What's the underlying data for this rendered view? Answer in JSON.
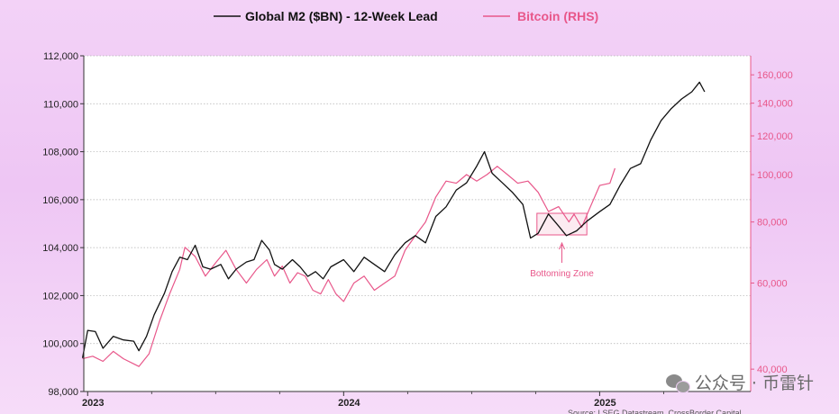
{
  "chart_data": {
    "type": "line",
    "legend": {
      "placement": "top",
      "items": [
        {
          "label": "Global M2 ($BN) - 12-Week Lead",
          "color": "#111111"
        },
        {
          "label": "Bitcoin (RHS)",
          "color": "#e8578a"
        }
      ]
    },
    "x_ticks": [
      "2023",
      "2024",
      "2025"
    ],
    "y_left": {
      "range": [
        98000,
        112000
      ],
      "ticks": [
        "98,000",
        "100,000",
        "102,000",
        "104,000",
        "106,000",
        "108,000",
        "110,000",
        "112,000"
      ]
    },
    "y_right": {
      "scale": "log",
      "range": [
        36000,
        175000
      ],
      "ticks": [
        "40,000",
        "60,000",
        "80,000",
        "100,000",
        "120,000",
        "140,000",
        "160,000"
      ],
      "color": "#e8578a"
    },
    "annotation": {
      "label": "Bottoming Zone",
      "color": "#e8578a"
    },
    "grid": true,
    "series": [
      {
        "name": "Global M2 ($BN) - 12-Week Lead",
        "axis": "left",
        "color": "#111111",
        "points": [
          [
            2022.98,
            99400
          ],
          [
            2023.0,
            100550
          ],
          [
            2023.03,
            100500
          ],
          [
            2023.06,
            99800
          ],
          [
            2023.1,
            100300
          ],
          [
            2023.14,
            100150
          ],
          [
            2023.18,
            100100
          ],
          [
            2023.2,
            99700
          ],
          [
            2023.23,
            100300
          ],
          [
            2023.26,
            101200
          ],
          [
            2023.3,
            102100
          ],
          [
            2023.33,
            103000
          ],
          [
            2023.36,
            103600
          ],
          [
            2023.39,
            103500
          ],
          [
            2023.42,
            104100
          ],
          [
            2023.45,
            103200
          ],
          [
            2023.48,
            103100
          ],
          [
            2023.52,
            103300
          ],
          [
            2023.55,
            102700
          ],
          [
            2023.58,
            103100
          ],
          [
            2023.62,
            103400
          ],
          [
            2023.65,
            103500
          ],
          [
            2023.68,
            104300
          ],
          [
            2023.71,
            103900
          ],
          [
            2023.73,
            103300
          ],
          [
            2023.76,
            103100
          ],
          [
            2023.8,
            103500
          ],
          [
            2023.83,
            103200
          ],
          [
            2023.86,
            102800
          ],
          [
            2023.89,
            103000
          ],
          [
            2023.92,
            102700
          ],
          [
            2023.95,
            103200
          ],
          [
            2024.0,
            103500
          ],
          [
            2024.04,
            103000
          ],
          [
            2024.08,
            103600
          ],
          [
            2024.12,
            103300
          ],
          [
            2024.16,
            103000
          ],
          [
            2024.2,
            103700
          ],
          [
            2024.24,
            104200
          ],
          [
            2024.28,
            104500
          ],
          [
            2024.32,
            104200
          ],
          [
            2024.36,
            105300
          ],
          [
            2024.4,
            105700
          ],
          [
            2024.44,
            106400
          ],
          [
            2024.48,
            106700
          ],
          [
            2024.52,
            107400
          ],
          [
            2024.55,
            108000
          ],
          [
            2024.58,
            107100
          ],
          [
            2024.62,
            106700
          ],
          [
            2024.66,
            106300
          ],
          [
            2024.7,
            105800
          ],
          [
            2024.73,
            104400
          ],
          [
            2024.76,
            104600
          ],
          [
            2024.8,
            105400
          ],
          [
            2024.84,
            104900
          ],
          [
            2024.87,
            104500
          ],
          [
            2024.91,
            104700
          ],
          [
            2024.95,
            105100
          ],
          [
            2025.0,
            105500
          ],
          [
            2025.04,
            105800
          ],
          [
            2025.08,
            106600
          ],
          [
            2025.12,
            107300
          ],
          [
            2025.16,
            107500
          ],
          [
            2025.2,
            108500
          ],
          [
            2025.24,
            109300
          ],
          [
            2025.28,
            109800
          ],
          [
            2025.32,
            110200
          ],
          [
            2025.36,
            110500
          ],
          [
            2025.39,
            110900
          ],
          [
            2025.41,
            110500
          ]
        ]
      },
      {
        "name": "Bitcoin (RHS)",
        "axis": "right",
        "color": "#e8578a",
        "points": [
          [
            2022.98,
            42000
          ],
          [
            2023.02,
            42500
          ],
          [
            2023.06,
            41500
          ],
          [
            2023.1,
            43500
          ],
          [
            2023.14,
            42000
          ],
          [
            2023.18,
            41000
          ],
          [
            2023.2,
            40500
          ],
          [
            2023.24,
            43000
          ],
          [
            2023.28,
            50000
          ],
          [
            2023.32,
            57000
          ],
          [
            2023.36,
            64000
          ],
          [
            2023.38,
            71000
          ],
          [
            2023.42,
            68000
          ],
          [
            2023.46,
            62000
          ],
          [
            2023.5,
            66000
          ],
          [
            2023.54,
            70000
          ],
          [
            2023.58,
            64000
          ],
          [
            2023.62,
            60000
          ],
          [
            2023.66,
            64000
          ],
          [
            2023.7,
            67000
          ],
          [
            2023.73,
            62000
          ],
          [
            2023.76,
            65000
          ],
          [
            2023.79,
            60000
          ],
          [
            2023.82,
            63000
          ],
          [
            2023.85,
            62000
          ],
          [
            2023.88,
            58000
          ],
          [
            2023.91,
            57000
          ],
          [
            2023.94,
            61000
          ],
          [
            2023.97,
            57000
          ],
          [
            2024.0,
            55000
          ],
          [
            2024.04,
            60000
          ],
          [
            2024.08,
            62000
          ],
          [
            2024.12,
            58000
          ],
          [
            2024.16,
            60000
          ],
          [
            2024.2,
            62000
          ],
          [
            2024.24,
            70000
          ],
          [
            2024.28,
            75000
          ],
          [
            2024.32,
            80000
          ],
          [
            2024.36,
            90000
          ],
          [
            2024.4,
            97000
          ],
          [
            2024.44,
            96000
          ],
          [
            2024.48,
            100000
          ],
          [
            2024.52,
            97000
          ],
          [
            2024.56,
            100000
          ],
          [
            2024.6,
            104000
          ],
          [
            2024.64,
            100000
          ],
          [
            2024.68,
            96000
          ],
          [
            2024.72,
            97000
          ],
          [
            2024.76,
            92000
          ],
          [
            2024.8,
            84000
          ],
          [
            2024.84,
            86000
          ],
          [
            2024.88,
            80000
          ],
          [
            2024.9,
            83000
          ],
          [
            2024.93,
            78000
          ],
          [
            2024.96,
            85000
          ],
          [
            2025.0,
            95000
          ],
          [
            2025.04,
            96000
          ],
          [
            2025.06,
            103000
          ]
        ]
      }
    ]
  },
  "watermark": {
    "text": "公众号 · 币雷针",
    "icon": "wechat-icon"
  },
  "source_note": "Source: LSEG Datastream, CrossBorder Capital"
}
